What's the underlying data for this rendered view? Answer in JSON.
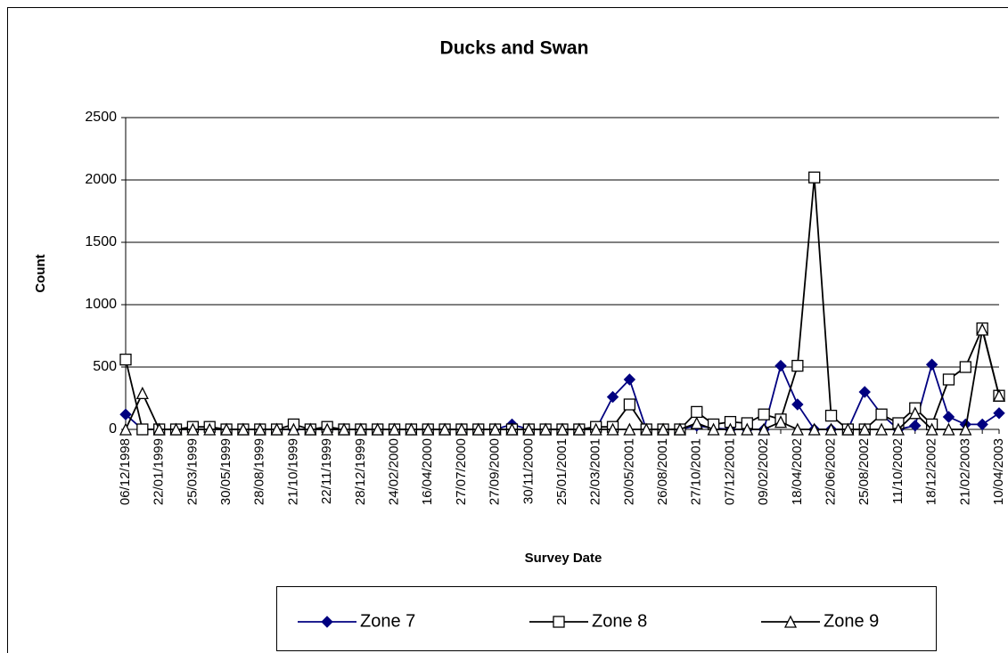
{
  "chart_data": {
    "type": "line",
    "title": "Ducks and Swan",
    "y_label": "Count",
    "x_label": "Survey Date",
    "categories": [
      "06/12/1998",
      null,
      "22/01/1999",
      null,
      "25/03/1999",
      null,
      "30/05/1999",
      null,
      "28/08/1999",
      null,
      "21/10/1999",
      null,
      "22/11/1999",
      null,
      "28/12/1999",
      null,
      "24/02/2000",
      null,
      "16/04/2000",
      null,
      "27/07/2000",
      null,
      "27/09/2000",
      null,
      "30/11/2000",
      null,
      "25/01/2001",
      null,
      "22/03/2001",
      null,
      "20/05/2001",
      null,
      "26/08/2001",
      null,
      "27/10/2001",
      null,
      "07/12/2001",
      null,
      "09/02/2002",
      null,
      "18/04/2002",
      null,
      "22/06/2002",
      null,
      "25/08/2002",
      null,
      "11/10/2002",
      null,
      "18/12/2002",
      null,
      "21/02/2003",
      null,
      "10/04/2003"
    ],
    "series": [
      {
        "name": "Zone 7",
        "color": "#000080",
        "marker": "diamond",
        "values": [
          120,
          0,
          0,
          0,
          0,
          0,
          0,
          0,
          0,
          0,
          0,
          0,
          0,
          0,
          0,
          0,
          0,
          0,
          0,
          0,
          0,
          0,
          0,
          40,
          0,
          0,
          0,
          0,
          0,
          260,
          400,
          0,
          0,
          0,
          30,
          10,
          0,
          0,
          0,
          510,
          200,
          0,
          0,
          0,
          300,
          120,
          0,
          30,
          520,
          100,
          40,
          40,
          130
        ]
      },
      {
        "name": "Zone 8",
        "color": "#000000",
        "marker": "square",
        "values": [
          560,
          0,
          0,
          0,
          20,
          20,
          0,
          0,
          0,
          0,
          40,
          0,
          20,
          0,
          0,
          0,
          0,
          0,
          0,
          0,
          0,
          0,
          0,
          0,
          0,
          0,
          0,
          0,
          20,
          20,
          200,
          0,
          0,
          0,
          140,
          40,
          60,
          50,
          120,
          80,
          510,
          2020,
          110,
          0,
          0,
          120,
          50,
          170,
          40,
          400,
          500,
          810,
          270
        ]
      },
      {
        "name": "Zone 9",
        "color": "#000000",
        "marker": "triangle",
        "values": [
          0,
          290,
          0,
          0,
          0,
          0,
          0,
          0,
          0,
          0,
          0,
          0,
          0,
          0,
          0,
          0,
          0,
          0,
          0,
          0,
          0,
          0,
          0,
          0,
          0,
          0,
          0,
          0,
          0,
          0,
          0,
          0,
          0,
          0,
          50,
          0,
          0,
          0,
          0,
          60,
          0,
          0,
          0,
          0,
          0,
          0,
          0,
          130,
          0,
          0,
          0,
          800,
          270
        ]
      }
    ],
    "ylim": [
      0,
      2500
    ],
    "yticks": [
      0,
      500,
      1000,
      1500,
      2000,
      2500
    ],
    "grid": true,
    "legend": "bottom"
  }
}
